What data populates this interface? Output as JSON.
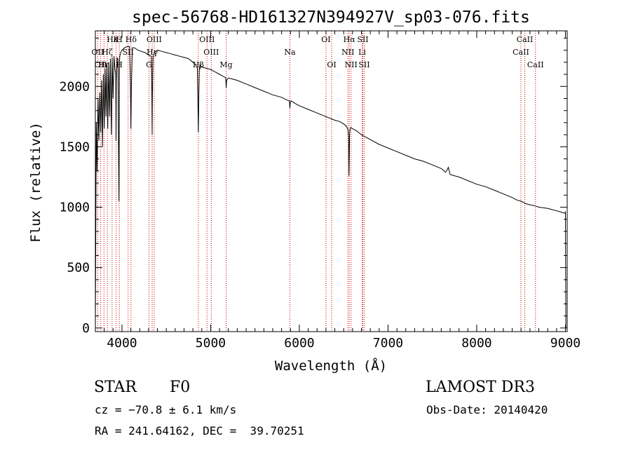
{
  "chart_data": {
    "type": "line",
    "title": "spec-56768-HD161327N394927V_sp03-076.fits",
    "xlabel": "Wavelength (Å)",
    "ylabel": "Flux (relative)",
    "xlim": [
      3700,
      9020
    ],
    "ylim": [
      -30,
      2460
    ],
    "xticks": [
      4000,
      5000,
      6000,
      7000,
      8000,
      9000
    ],
    "yticks": [
      0,
      500,
      1000,
      1500,
      2000
    ],
    "spectrum": {
      "x": [
        3700,
        3710,
        3720,
        3730,
        3740,
        3750,
        3760,
        3770,
        3780,
        3790,
        3800,
        3810,
        3820,
        3830,
        3840,
        3850,
        3860,
        3870,
        3880,
        3890,
        3900,
        3910,
        3920,
        3930,
        3933,
        3936,
        3945,
        3955,
        3960,
        3966,
        3968,
        3971,
        3975,
        3985,
        4000,
        4030,
        4060,
        4085,
        4096,
        4101,
        4106,
        4117,
        4140,
        4180,
        4220,
        4260,
        4300,
        4330,
        4337,
        4340,
        4343,
        4350,
        4360,
        4380,
        4400,
        4450,
        4500,
        4550,
        4600,
        4650,
        4700,
        4750,
        4800,
        4830,
        4850,
        4856,
        4861,
        4866,
        4872,
        4880,
        4900,
        4950,
        5000,
        5050,
        5100,
        5150,
        5170,
        5175,
        5180,
        5200,
        5250,
        5300,
        5400,
        5500,
        5600,
        5700,
        5800,
        5850,
        5888,
        5893,
        5898,
        5910,
        5950,
        6000,
        6100,
        6200,
        6300,
        6400,
        6450,
        6500,
        6530,
        6550,
        6556,
        6560,
        6563,
        6566,
        6570,
        6580,
        6600,
        6650,
        6700,
        6800,
        6900,
        7000,
        7100,
        7200,
        7300,
        7400,
        7500,
        7600,
        7650,
        7660,
        7680,
        7700,
        7800,
        7900,
        8000,
        8100,
        8200,
        8300,
        8400,
        8450,
        8500,
        8550,
        8600,
        8662,
        8700,
        8800,
        8850,
        8900,
        8950,
        8990,
        9000,
        9005,
        9010
      ],
      "y": [
        0,
        1700,
        1300,
        1900,
        1550,
        1950,
        1620,
        2050,
        1500,
        2100,
        1650,
        2150,
        1750,
        2180,
        1650,
        2200,
        1750,
        2230,
        1600,
        2240,
        1900,
        2250,
        2150,
        2100,
        1550,
        2050,
        2240,
        2220,
        1600,
        1050,
        1400,
        2150,
        2250,
        2280,
        2300,
        2320,
        2330,
        2330,
        2000,
        1650,
        2000,
        2320,
        2320,
        2300,
        2290,
        2280,
        2260,
        2250,
        1950,
        1600,
        1900,
        2240,
        2270,
        2290,
        2300,
        2290,
        2280,
        2270,
        2260,
        2250,
        2240,
        2230,
        2200,
        2180,
        2150,
        1900,
        1620,
        1900,
        2140,
        2180,
        2160,
        2150,
        2140,
        2120,
        2100,
        2080,
        2070,
        1990,
        2050,
        2070,
        2060,
        2050,
        2020,
        1990,
        1960,
        1930,
        1910,
        1890,
        1880,
        1820,
        1870,
        1880,
        1860,
        1840,
        1810,
        1780,
        1750,
        1720,
        1710,
        1690,
        1670,
        1640,
        1560,
        1260,
        1420,
        1600,
        1640,
        1660,
        1650,
        1630,
        1600,
        1560,
        1520,
        1490,
        1460,
        1430,
        1400,
        1380,
        1350,
        1320,
        1290,
        1300,
        1330,
        1270,
        1250,
        1220,
        1190,
        1170,
        1140,
        1110,
        1080,
        1060,
        1050,
        1030,
        1020,
        1010,
        1000,
        990,
        980,
        970,
        960,
        950,
        960,
        0,
        0
      ]
    },
    "lines": [
      {
        "label": "Hδ",
        "wave": 4102,
        "row": 1
      },
      {
        "label": "K",
        "wave": 3934,
        "row": 1
      },
      {
        "label": "H",
        "wave": 3969,
        "row": 1
      },
      {
        "label": "OII",
        "wave": 3727,
        "row": 2
      },
      {
        "label": "Hε",
        "wave": 3889,
        "row": 1
      },
      {
        "label": "Hζ",
        "wave": 3835,
        "row": 2
      },
      {
        "label": "SII",
        "wave": 4069,
        "row": 2
      },
      {
        "label": "OII",
        "wave": 3760,
        "row": 3
      },
      {
        "label": "Hη",
        "wave": 3797,
        "row": 3
      },
      {
        "label": "H",
        "wave": 3970,
        "row": 3
      },
      {
        "label": "Hγ",
        "wave": 4341,
        "row": 2
      },
      {
        "label": "OIII",
        "wave": 4363,
        "row": 1
      },
      {
        "label": "G",
        "wave": 4305,
        "row": 3
      },
      {
        "label": "OIII",
        "wave": 4959,
        "row": 1
      },
      {
        "label": "OIII",
        "wave": 5007,
        "row": 2
      },
      {
        "label": "Hβ",
        "wave": 4861,
        "row": 3
      },
      {
        "label": "Mg",
        "wave": 5175,
        "row": 3
      },
      {
        "label": "Na",
        "wave": 5893,
        "row": 2
      },
      {
        "label": "OI",
        "wave": 6300,
        "row": 1
      },
      {
        "label": "OI",
        "wave": 6364,
        "row": 3
      },
      {
        "label": "Hα",
        "wave": 6563,
        "row": 1
      },
      {
        "label": "SII",
        "wave": 6716,
        "row": 1
      },
      {
        "label": "NII",
        "wave": 6548,
        "row": 2
      },
      {
        "label": "Li",
        "wave": 6708,
        "row": 2
      },
      {
        "label": "NII",
        "wave": 6583,
        "row": 3
      },
      {
        "label": "SII",
        "wave": 6731,
        "row": 3
      },
      {
        "label": "CaII",
        "wave": 8542,
        "row": 1
      },
      {
        "label": "CaII",
        "wave": 8498,
        "row": 2
      },
      {
        "label": "CaII",
        "wave": 8662,
        "row": 3
      }
    ]
  },
  "info": {
    "class_label": "STAR",
    "subclass": "F0",
    "survey": "LAMOST DR3",
    "cz": "cz = −70.8 ± 6.1 km/s",
    "obs_date": "Obs-Date: 20140420",
    "coords": "RA = 241.64162, DEC =  39.70251"
  },
  "colors": {
    "spectrum": "#000000",
    "line_marker": "#cc0000",
    "axis": "#000000"
  }
}
